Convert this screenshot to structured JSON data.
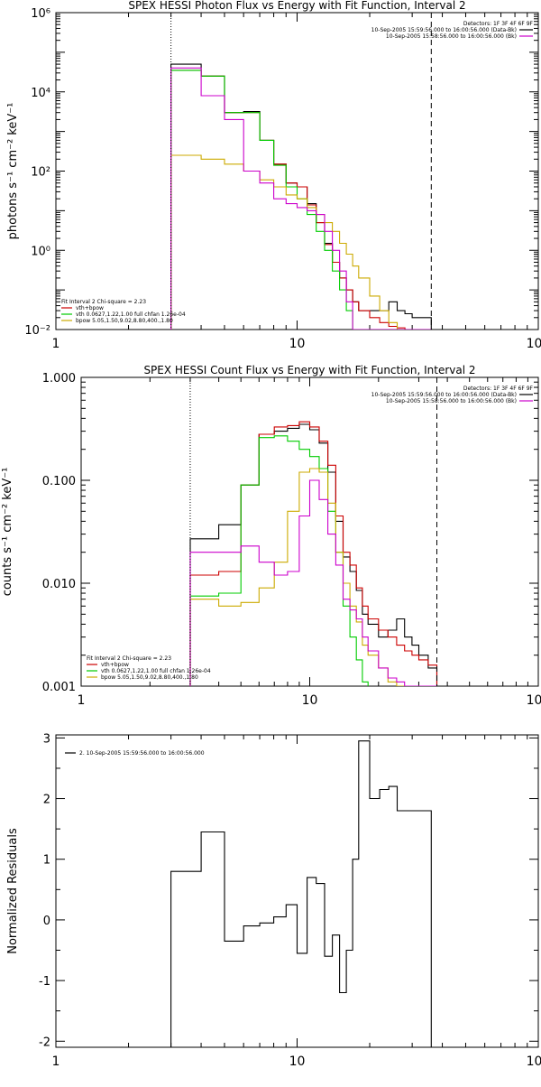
{
  "chart_data": [
    {
      "type": "line",
      "title": "SPEX HESSI Photon Flux vs Energy with Fit Function, Interval 2",
      "xlabel": "",
      "ylabel": "photons s⁻¹ cm⁻² keV⁻¹",
      "xscale": "log",
      "yscale": "log",
      "xlim": [
        1,
        100
      ],
      "ylim": [
        0.01,
        1000000
      ],
      "x_ticks": [
        1,
        10,
        100
      ],
      "x_tick_labels": [
        "1",
        "10",
        "100"
      ],
      "y_ticks": [
        0.01,
        1,
        100,
        10000,
        1000000
      ],
      "y_tick_labels": [
        "10⁻²",
        "10⁰",
        "10²",
        "10⁴",
        "10⁶"
      ],
      "vlines": [
        {
          "x": 3,
          "style": "dotted"
        },
        {
          "x": 36,
          "style": "dashed"
        }
      ],
      "legend_top": {
        "position": "top-right",
        "header": "Detectors: 1F 3F 4F 6F 9F",
        "lines": [
          {
            "text": "10-Sep-2005 15:59:56.000 to 16:00:56.000 (Data-Bk)",
            "color": "#000000"
          },
          {
            "text": "10-Sep-2005 15:58:56.000 to 16:00:56.000 (Bk)",
            "color": "#cc00cc"
          }
        ]
      },
      "legend_bottom": {
        "position": "bottom-left",
        "header": "Fit Interval 2   Chi-square = 2.23",
        "lines": [
          {
            "text": "vth+bpow",
            "color": "#cc0000"
          },
          {
            "text": "vth 0.0627,1.22,1.00  full chfan 1.26e-04",
            "color": "#00cc00"
          },
          {
            "text": "bpow 5.05,1.50,9.02,8.80,400.,1.80",
            "color": "#ccaa00"
          }
        ]
      },
      "series": [
        {
          "name": "Data-Bk",
          "color": "#000000",
          "edges": [
            3,
            4,
            5,
            6,
            7,
            8,
            9,
            10,
            11,
            12,
            13,
            14,
            15,
            16,
            17,
            18,
            20,
            22,
            24,
            26,
            28,
            30,
            33,
            36
          ],
          "values": [
            50000,
            25000,
            3000,
            3200,
            600,
            150,
            50,
            40,
            15,
            5,
            1.5,
            0.5,
            0.2,
            0.1,
            0.05,
            0.03,
            0.03,
            0.03,
            0.05,
            0.03,
            0.025,
            0.02,
            0.02
          ]
        },
        {
          "name": "vth+bpow",
          "color": "#cc0000",
          "edges": [
            3,
            4,
            5,
            6,
            7,
            8,
            9,
            10,
            11,
            12,
            13,
            14,
            15,
            16,
            17,
            18,
            20,
            22,
            24,
            26,
            28,
            30,
            33,
            36
          ],
          "values": [
            35000,
            25000,
            3000,
            3000,
            600,
            150,
            50,
            40,
            14,
            5,
            1.4,
            0.5,
            0.2,
            0.1,
            0.05,
            0.03,
            0.02,
            0.015,
            0.012,
            0.011,
            0.01,
            0.01,
            0.01
          ]
        },
        {
          "name": "vth",
          "color": "#00cc00",
          "edges": [
            3,
            4,
            5,
            6,
            7,
            8,
            9,
            10,
            11,
            12,
            13,
            14,
            15,
            16,
            17,
            18
          ],
          "values": [
            35000,
            25000,
            3000,
            3000,
            600,
            140,
            40,
            20,
            8,
            3,
            1,
            0.3,
            0.1,
            0.03,
            0.01
          ]
        },
        {
          "name": "bpow",
          "color": "#ccaa00",
          "edges": [
            3,
            4,
            5,
            6,
            7,
            8,
            9,
            10,
            11,
            12,
            13,
            14,
            15,
            16,
            17,
            18,
            20,
            22,
            24,
            26,
            28,
            30,
            33,
            36
          ],
          "values": [
            250,
            200,
            150,
            100,
            60,
            40,
            25,
            20,
            12,
            8,
            5,
            3,
            1.5,
            0.8,
            0.4,
            0.2,
            0.07,
            0.03,
            0.015,
            0.01,
            0.01,
            0.01,
            0.01
          ]
        },
        {
          "name": "Bk",
          "color": "#cc00cc",
          "edges": [
            3,
            4,
            5,
            6,
            7,
            8,
            9,
            10,
            11,
            12,
            13,
            14,
            15,
            16,
            17,
            18,
            20,
            22,
            24,
            26,
            28,
            30,
            33,
            36
          ],
          "values": [
            40000,
            8000,
            2000,
            100,
            50,
            20,
            15,
            12,
            10,
            8,
            3,
            1,
            0.3,
            0.05,
            0.01,
            0.005,
            0.005,
            0.005,
            0.005,
            0.005,
            0.005,
            0.005,
            0.005
          ]
        }
      ]
    },
    {
      "type": "line",
      "title": "SPEX HESSI Count Flux vs Energy with Fit Function, Interval 2",
      "xlabel": "",
      "ylabel": "counts s⁻¹ cm⁻² keV⁻¹",
      "xscale": "log",
      "yscale": "log",
      "xlim": [
        1,
        100
      ],
      "ylim": [
        0.001,
        1.0
      ],
      "x_ticks": [
        1,
        10,
        100
      ],
      "x_tick_labels": [
        "1",
        "10",
        "100"
      ],
      "y_ticks": [
        0.001,
        0.01,
        0.1,
        1.0
      ],
      "y_tick_labels": [
        "0.001",
        "0.010",
        "0.100",
        "1.000"
      ],
      "vlines": [
        {
          "x": 3,
          "style": "dotted"
        },
        {
          "x": 36,
          "style": "dashed"
        }
      ],
      "legend_top": {
        "position": "top-right",
        "header": "Detectors: 1F 3F 4F 6F 9F",
        "lines": [
          {
            "text": "10-Sep-2005 15:59:56.000 to 16:00:56.000 (Data-Bk)",
            "color": "#000000"
          },
          {
            "text": "10-Sep-2005 15:58:56.000 to 16:00:56.000 (Bk)",
            "color": "#cc00cc"
          }
        ]
      },
      "legend_bottom": {
        "position": "bottom-left",
        "header": "Fit Interval 2   Chi-square = 2.23",
        "lines": [
          {
            "text": "vth+bpow",
            "color": "#cc0000"
          },
          {
            "text": "vth 0.0627,1.22,1.00  full chfan 1.26e-04",
            "color": "#00cc00"
          },
          {
            "text": "bpow 5.05,1.50,9.02,8.80,400.,1.80",
            "color": "#ccaa00"
          }
        ]
      },
      "series": [
        {
          "name": "Data-Bk",
          "color": "#000000",
          "edges": [
            3,
            4,
            5,
            6,
            7,
            8,
            9,
            10,
            11,
            12,
            13,
            14,
            15,
            16,
            17,
            18,
            20,
            22,
            24,
            26,
            28,
            30,
            33,
            36
          ],
          "values": [
            0.027,
            0.037,
            0.09,
            0.28,
            0.3,
            0.32,
            0.35,
            0.31,
            0.23,
            0.12,
            0.04,
            0.018,
            0.013,
            0.0085,
            0.005,
            0.004,
            0.003,
            0.0035,
            0.0045,
            0.003,
            0.0025,
            0.002,
            0.0015
          ]
        },
        {
          "name": "vth+bpow",
          "color": "#cc0000",
          "edges": [
            3,
            4,
            5,
            6,
            7,
            8,
            9,
            10,
            11,
            12,
            13,
            14,
            15,
            16,
            17,
            18,
            20,
            22,
            24,
            26,
            28,
            30,
            33,
            36
          ],
          "values": [
            0.012,
            0.013,
            0.09,
            0.28,
            0.33,
            0.34,
            0.37,
            0.33,
            0.24,
            0.14,
            0.045,
            0.02,
            0.015,
            0.009,
            0.006,
            0.0045,
            0.0035,
            0.003,
            0.0025,
            0.0022,
            0.002,
            0.0018,
            0.0016
          ]
        },
        {
          "name": "vth",
          "color": "#00cc00",
          "edges": [
            3,
            4,
            5,
            6,
            7,
            8,
            9,
            10,
            11,
            12,
            13,
            14,
            15,
            16,
            17,
            18
          ],
          "values": [
            0.0075,
            0.008,
            0.09,
            0.26,
            0.27,
            0.24,
            0.2,
            0.17,
            0.13,
            0.05,
            0.02,
            0.006,
            0.003,
            0.0018,
            0.0011
          ]
        },
        {
          "name": "bpow",
          "color": "#ccaa00",
          "edges": [
            3,
            4,
            5,
            6,
            7,
            8,
            9,
            10,
            11,
            12,
            13,
            14,
            15,
            16,
            17,
            18,
            20,
            22,
            24,
            26,
            28,
            30,
            33,
            36
          ],
          "values": [
            0.007,
            0.006,
            0.0065,
            0.009,
            0.016,
            0.05,
            0.12,
            0.13,
            0.12,
            0.06,
            0.02,
            0.01,
            0.006,
            0.0042,
            0.0025,
            0.002,
            0.0015,
            0.0011,
            0.001,
            0.001,
            0.001,
            0.001,
            0.001
          ]
        },
        {
          "name": "Bk",
          "color": "#cc00cc",
          "edges": [
            3,
            4,
            5,
            6,
            7,
            8,
            9,
            10,
            11,
            12,
            13,
            14,
            15,
            16,
            17,
            18,
            20,
            22,
            24,
            26,
            28,
            30,
            33,
            36
          ],
          "values": [
            0.02,
            0.02,
            0.023,
            0.016,
            0.012,
            0.013,
            0.045,
            0.1,
            0.065,
            0.03,
            0.015,
            0.007,
            0.0055,
            0.0045,
            0.003,
            0.0022,
            0.0015,
            0.0012,
            0.0011,
            0.001,
            0.001,
            0.001,
            0.001
          ]
        }
      ]
    },
    {
      "type": "line",
      "title": "",
      "xlabel": "",
      "ylabel": "Normalized Residuals",
      "xscale": "log",
      "yscale": "linear",
      "xlim": [
        1,
        100
      ],
      "ylim": [
        -2.1,
        3.05
      ],
      "x_ticks": [
        1,
        10,
        100
      ],
      "x_tick_labels": [
        "1",
        "10",
        "100"
      ],
      "y_ticks": [
        -2,
        -1,
        0,
        1,
        2,
        3
      ],
      "y_tick_labels": [
        "-2",
        "-1",
        "0",
        "1",
        "2",
        "3"
      ],
      "legend_top": {
        "position": "top-left",
        "header": "",
        "lines": [
          {
            "text": "2. 10-Sep-2005 15:59:56.000 to 16:00:56.000",
            "color": "#000000"
          }
        ]
      },
      "series": [
        {
          "name": "2. 10-Sep-2005 15:59:56.000 to 16:00:56.000",
          "color": "#000000",
          "edges": [
            3,
            4,
            5,
            6,
            7,
            8,
            9,
            10,
            11,
            12,
            13,
            14,
            15,
            16,
            17,
            18,
            20,
            22,
            24,
            26,
            28,
            30,
            33,
            36
          ],
          "values": [
            0.8,
            1.45,
            -0.35,
            -0.1,
            -0.05,
            0.05,
            0.25,
            -0.55,
            0.7,
            0.6,
            -0.6,
            -0.25,
            -1.2,
            -0.5,
            1.0,
            2.95,
            2.0,
            2.15,
            2.2,
            1.8,
            1.8,
            1.8,
            1.8
          ],
          "drop_to": -2.1
        }
      ]
    }
  ]
}
